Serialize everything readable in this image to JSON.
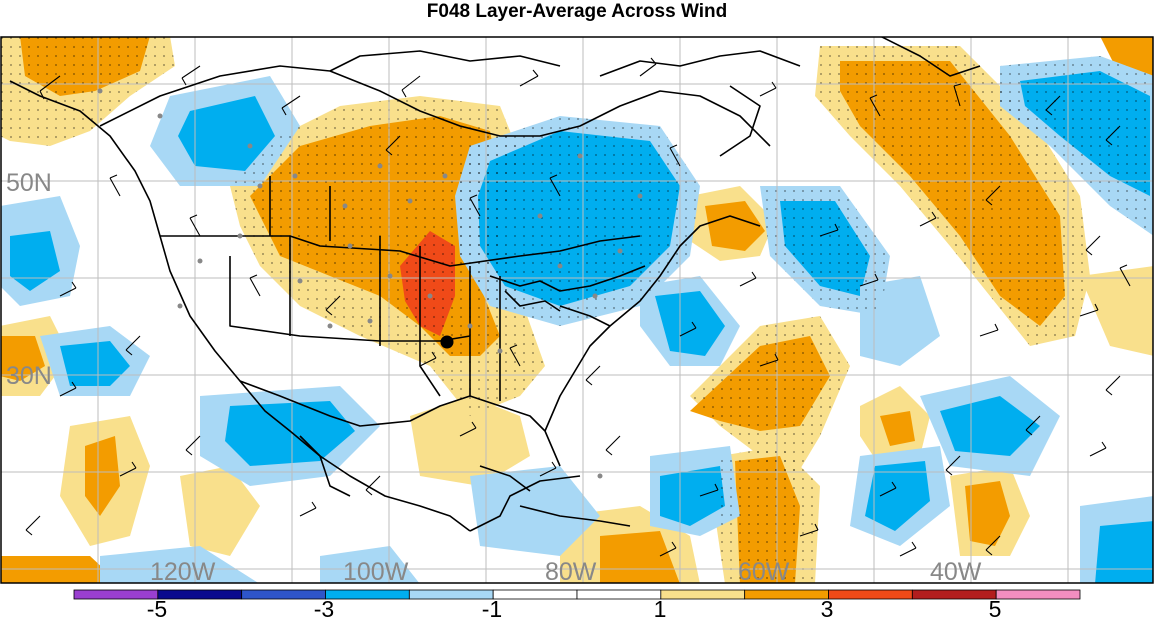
{
  "title": "F048 Layer-Average Across Wind",
  "lat_labels": [
    "50N",
    "30N"
  ],
  "lon_labels": [
    "120W",
    "100W",
    "80W",
    "60W",
    "40W"
  ],
  "colorbar": {
    "colors": [
      "#9a3fd0",
      "#0a0a8e",
      "#2e55c9",
      "#00aeef",
      "#a8d8f5",
      "#ffffff",
      "#ffffff",
      "#f9e08c",
      "#f39c00",
      "#f04a18",
      "#b21e1e",
      "#f28ec0"
    ],
    "tick_labels": [
      "-5",
      "-3",
      "-1",
      "1",
      "3",
      "5"
    ]
  },
  "palette": {
    "strong_pos": "#f39c00",
    "weak_pos": "#f9e08c",
    "peak_pos": "#f04a18",
    "strong_neg": "#00aeef",
    "weak_neg": "#a8d8f5"
  }
}
